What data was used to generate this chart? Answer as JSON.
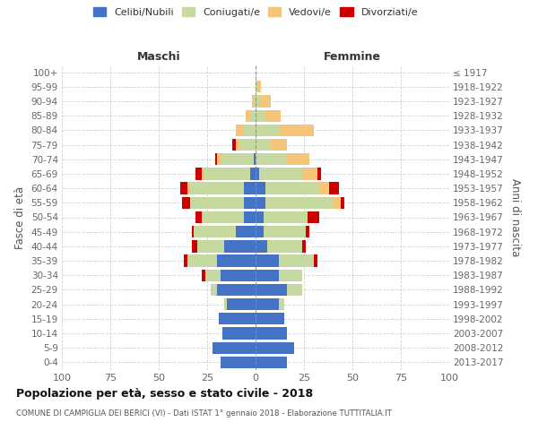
{
  "age_groups": [
    "0-4",
    "5-9",
    "10-14",
    "15-19",
    "20-24",
    "25-29",
    "30-34",
    "35-39",
    "40-44",
    "45-49",
    "50-54",
    "55-59",
    "60-64",
    "65-69",
    "70-74",
    "75-79",
    "80-84",
    "85-89",
    "90-94",
    "95-99",
    "100+"
  ],
  "birth_years": [
    "2013-2017",
    "2008-2012",
    "2003-2007",
    "1998-2002",
    "1993-1997",
    "1988-1992",
    "1983-1987",
    "1978-1982",
    "1973-1977",
    "1968-1972",
    "1963-1967",
    "1958-1962",
    "1953-1957",
    "1948-1952",
    "1943-1947",
    "1938-1942",
    "1933-1937",
    "1928-1932",
    "1923-1927",
    "1918-1922",
    "≤ 1917"
  ],
  "male": {
    "celibi": [
      18,
      22,
      17,
      19,
      15,
      20,
      18,
      20,
      16,
      10,
      6,
      6,
      6,
      3,
      1,
      0,
      0,
      0,
      0,
      0,
      0
    ],
    "coniugati": [
      0,
      0,
      0,
      0,
      1,
      3,
      8,
      15,
      14,
      22,
      22,
      28,
      28,
      24,
      16,
      8,
      6,
      3,
      1,
      0,
      0
    ],
    "vedovi": [
      0,
      0,
      0,
      0,
      0,
      0,
      0,
      0,
      0,
      0,
      0,
      0,
      1,
      1,
      3,
      2,
      4,
      2,
      1,
      0,
      0
    ],
    "divorziati": [
      0,
      0,
      0,
      0,
      0,
      0,
      2,
      2,
      3,
      1,
      3,
      4,
      4,
      3,
      1,
      2,
      0,
      0,
      0,
      0,
      0
    ]
  },
  "female": {
    "nubili": [
      16,
      20,
      16,
      15,
      12,
      16,
      12,
      12,
      6,
      4,
      4,
      5,
      5,
      2,
      0,
      0,
      0,
      0,
      0,
      0,
      0
    ],
    "coniugate": [
      0,
      0,
      0,
      0,
      3,
      8,
      12,
      18,
      18,
      22,
      22,
      35,
      28,
      22,
      16,
      8,
      12,
      5,
      2,
      1,
      0
    ],
    "vedove": [
      0,
      0,
      0,
      0,
      0,
      0,
      0,
      0,
      0,
      0,
      1,
      4,
      5,
      8,
      12,
      8,
      18,
      8,
      6,
      2,
      0
    ],
    "divorziate": [
      0,
      0,
      0,
      0,
      0,
      0,
      0,
      2,
      2,
      2,
      6,
      2,
      5,
      2,
      0,
      0,
      0,
      0,
      0,
      0,
      0
    ]
  },
  "colors": {
    "celibi_nubili": "#4472c4",
    "coniugati": "#c5d9a0",
    "vedovi": "#f5c57a",
    "divorziati": "#cc0000"
  },
  "title": "Popolazione per età, sesso e stato civile - 2018",
  "subtitle": "COMUNE DI CAMPIGLIA DEI BERICI (VI) - Dati ISTAT 1° gennaio 2018 - Elaborazione TUTTITALIA.IT",
  "xlim": 100,
  "ylabel_left": "Fasce di età",
  "ylabel_right": "Anni di nascita",
  "xlabel_male": "Maschi",
  "xlabel_female": "Femmine",
  "bg_color": "#ffffff",
  "grid_color": "#cccccc",
  "legend_labels": [
    "Celibi/Nubili",
    "Coniugati/e",
    "Vedovi/e",
    "Divorziati/e"
  ]
}
